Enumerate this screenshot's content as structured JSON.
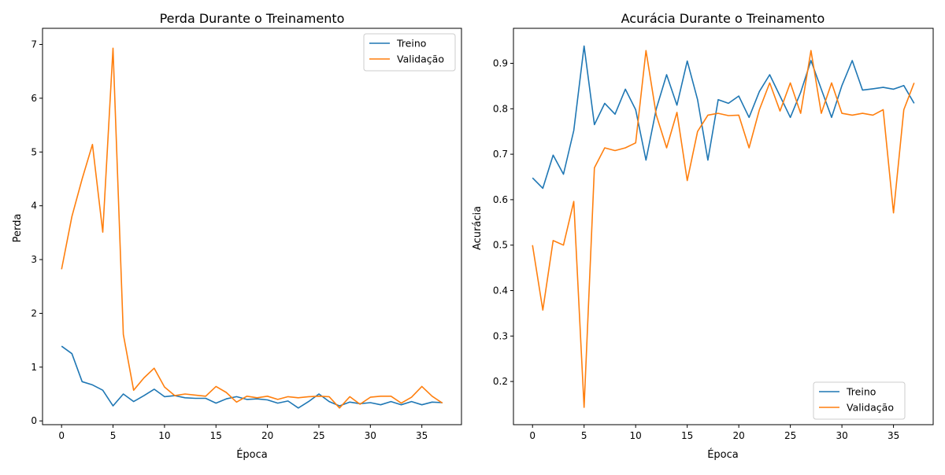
{
  "chart_data": [
    {
      "type": "line",
      "title": "Perda Durante o Treinamento",
      "xlabel": "Época",
      "ylabel": "Perda",
      "xlim": [
        -1.85,
        38.85
      ],
      "ylim": [
        -0.07,
        7.3
      ],
      "xticks": [
        0,
        5,
        10,
        15,
        20,
        25,
        30,
        35
      ],
      "yticks": [
        0,
        1,
        2,
        3,
        4,
        5,
        6,
        7
      ],
      "ytick_labels": [
        "0",
        "1",
        "2",
        "3",
        "4",
        "5",
        "6",
        "7"
      ],
      "grid": false,
      "legend_position": "upper right",
      "x": [
        0,
        1,
        2,
        3,
        4,
        5,
        6,
        7,
        8,
        9,
        10,
        11,
        12,
        13,
        14,
        15,
        16,
        17,
        18,
        19,
        20,
        21,
        22,
        23,
        24,
        25,
        26,
        27,
        28,
        29,
        30,
        31,
        32,
        33,
        34,
        35,
        36,
        37
      ],
      "series": [
        {
          "name": "Treino",
          "color": "#1f77b4",
          "values": [
            1.39,
            1.25,
            0.73,
            0.67,
            0.57,
            0.28,
            0.5,
            0.36,
            0.47,
            0.59,
            0.45,
            0.47,
            0.43,
            0.42,
            0.42,
            0.33,
            0.41,
            0.45,
            0.4,
            0.41,
            0.39,
            0.33,
            0.37,
            0.24,
            0.36,
            0.5,
            0.36,
            0.28,
            0.35,
            0.32,
            0.34,
            0.3,
            0.36,
            0.3,
            0.36,
            0.3,
            0.35,
            0.34
          ]
        },
        {
          "name": "Validação",
          "color": "#ff7f0e",
          "values": [
            2.82,
            3.8,
            4.5,
            5.14,
            3.51,
            6.93,
            1.61,
            0.57,
            0.8,
            0.98,
            0.63,
            0.47,
            0.5,
            0.48,
            0.46,
            0.64,
            0.53,
            0.35,
            0.46,
            0.43,
            0.46,
            0.4,
            0.45,
            0.43,
            0.45,
            0.46,
            0.45,
            0.24,
            0.45,
            0.31,
            0.44,
            0.46,
            0.46,
            0.33,
            0.44,
            0.64,
            0.46,
            0.33
          ]
        }
      ]
    },
    {
      "type": "line",
      "title": "Acurácia Durante o Treinamento",
      "xlabel": "Época",
      "ylabel": "Acurácia",
      "xlim": [
        -1.85,
        38.85
      ],
      "ylim": [
        0.105,
        0.977
      ],
      "xticks": [
        0,
        5,
        10,
        15,
        20,
        25,
        30,
        35
      ],
      "yticks": [
        0.2,
        0.3,
        0.4,
        0.5,
        0.6,
        0.7,
        0.8,
        0.9
      ],
      "ytick_labels": [
        "0.2",
        "0.3",
        "0.4",
        "0.5",
        "0.6",
        "0.7",
        "0.8",
        "0.9"
      ],
      "grid": false,
      "legend_position": "lower right",
      "x": [
        0,
        1,
        2,
        3,
        4,
        5,
        6,
        7,
        8,
        9,
        10,
        11,
        12,
        13,
        14,
        15,
        16,
        17,
        18,
        19,
        20,
        21,
        22,
        23,
        24,
        25,
        26,
        27,
        28,
        29,
        30,
        31,
        32,
        33,
        34,
        35,
        36,
        37
      ],
      "series": [
        {
          "name": "Treino",
          "color": "#1f77b4",
          "values": [
            0.648,
            0.625,
            0.698,
            0.656,
            0.752,
            0.938,
            0.765,
            0.812,
            0.788,
            0.843,
            0.798,
            0.687,
            0.8,
            0.875,
            0.808,
            0.905,
            0.82,
            0.687,
            0.82,
            0.812,
            0.828,
            0.781,
            0.838,
            0.875,
            0.828,
            0.781,
            0.836,
            0.906,
            0.843,
            0.781,
            0.851,
            0.906,
            0.841,
            0.844,
            0.847,
            0.843,
            0.851,
            0.812
          ]
        },
        {
          "name": "Validação",
          "color": "#ff7f0e",
          "values": [
            0.5,
            0.357,
            0.51,
            0.5,
            0.596,
            0.143,
            0.67,
            0.714,
            0.708,
            0.714,
            0.725,
            0.928,
            0.786,
            0.714,
            0.792,
            0.642,
            0.75,
            0.786,
            0.79,
            0.785,
            0.786,
            0.714,
            0.798,
            0.857,
            0.795,
            0.857,
            0.79,
            0.928,
            0.79,
            0.857,
            0.79,
            0.786,
            0.79,
            0.786,
            0.798,
            0.571,
            0.798,
            0.857
          ]
        }
      ]
    }
  ]
}
